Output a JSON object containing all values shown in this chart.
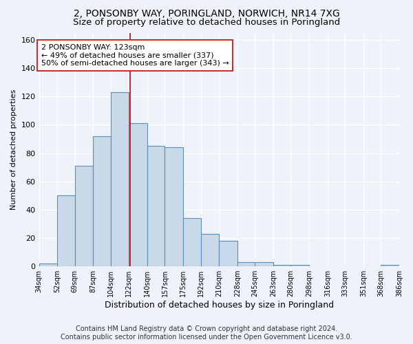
{
  "title": "2, PONSONBY WAY, PORINGLAND, NORWICH, NR14 7XG",
  "subtitle": "Size of property relative to detached houses in Poringland",
  "xlabel": "Distribution of detached houses by size in Poringland",
  "ylabel": "Number of detached properties",
  "bar_edges": [
    34,
    52,
    69,
    87,
    104,
    122,
    140,
    157,
    175,
    192,
    210,
    228,
    245,
    263,
    280,
    298,
    316,
    333,
    351,
    368,
    386
  ],
  "bar_heights": [
    2,
    50,
    71,
    92,
    123,
    101,
    85,
    84,
    34,
    23,
    18,
    3,
    3,
    1,
    1,
    0,
    0,
    0,
    0,
    1
  ],
  "bar_color": "#c9d9ea",
  "bar_edge_color": "#5b8db8",
  "bar_linewidth": 0.8,
  "vline_x": 123,
  "vline_color": "#cc0000",
  "vline_linewidth": 1.2,
  "annotation_text": "2 PONSONBY WAY: 123sqm\n← 49% of detached houses are smaller (337)\n50% of semi-detached houses are larger (343) →",
  "annotation_box_color": "#ffffff",
  "annotation_box_edge": "#cc0000",
  "ylim": [
    0,
    165
  ],
  "yticks": [
    0,
    20,
    40,
    60,
    80,
    100,
    120,
    140,
    160
  ],
  "tick_labels": [
    "34sqm",
    "52sqm",
    "69sqm",
    "87sqm",
    "104sqm",
    "122sqm",
    "140sqm",
    "157sqm",
    "175sqm",
    "192sqm",
    "210sqm",
    "228sqm",
    "245sqm",
    "263sqm",
    "280sqm",
    "298sqm",
    "316sqm",
    "333sqm",
    "351sqm",
    "368sqm",
    "386sqm"
  ],
  "footer_text": "Contains HM Land Registry data © Crown copyright and database right 2024.\nContains public sector information licensed under the Open Government Licence v3.0.",
  "background_color": "#eef2f9",
  "grid_color": "#ffffff",
  "title_fontsize": 10,
  "subtitle_fontsize": 9.5,
  "ylabel_fontsize": 8,
  "xlabel_fontsize": 9,
  "footer_fontsize": 7,
  "annotation_fontsize": 8,
  "figsize": [
    6.0,
    5.0
  ],
  "dpi": 100
}
